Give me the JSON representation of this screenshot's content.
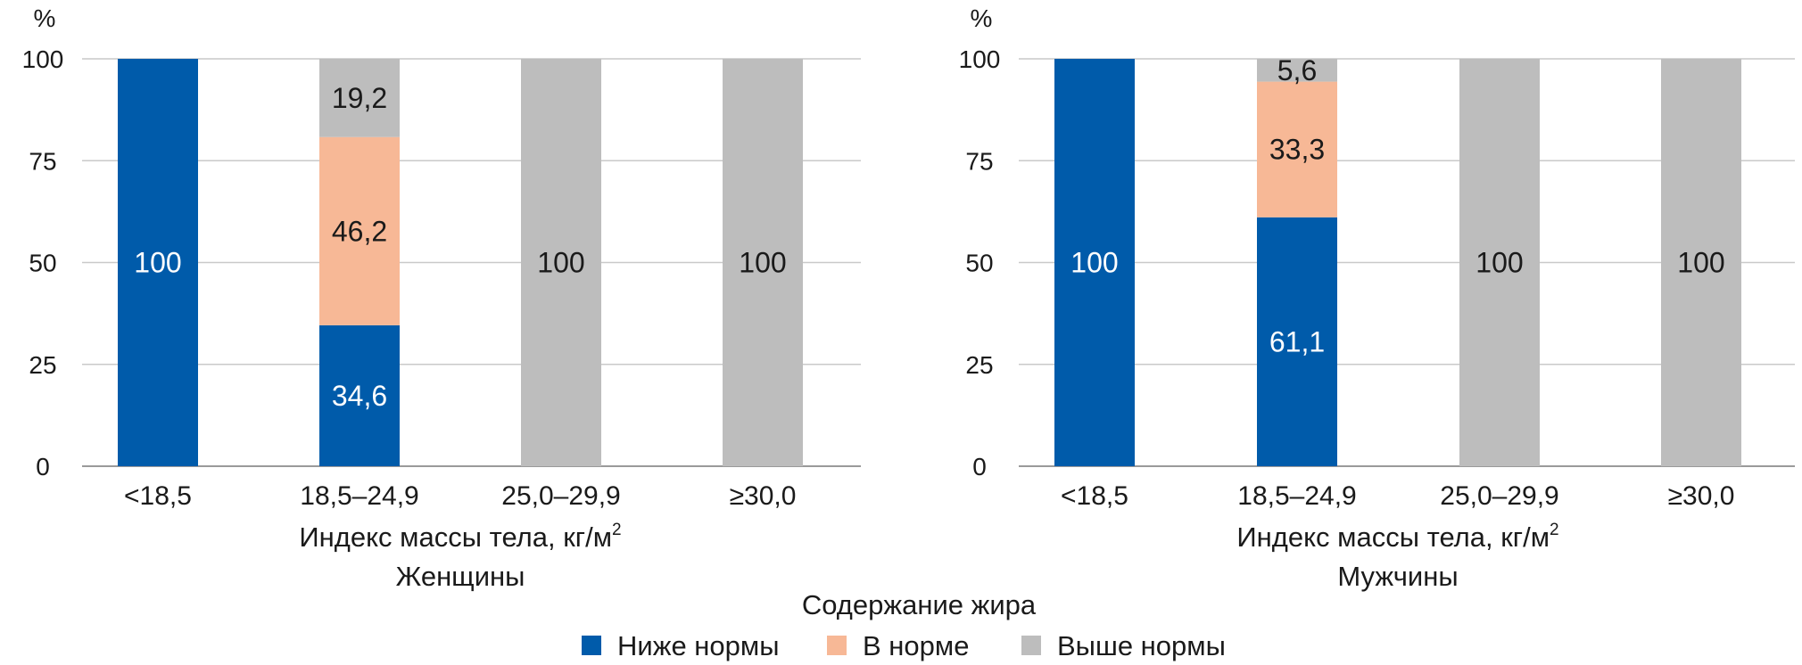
{
  "chart_data": [
    {
      "type": "bar",
      "stacked": true,
      "subtitle": "Женщины",
      "xlabel": "Индекс массы тела, кг/м",
      "xlabel_sup": "2",
      "ylabel": "%",
      "ylim": [
        0,
        100
      ],
      "yticks": [
        "0",
        "25",
        "50",
        "75",
        "100"
      ],
      "grid": true,
      "categories": [
        "<18,5",
        "18,5–24,9",
        "25,0–29,9",
        "≥30,0"
      ],
      "series": [
        {
          "name": "Ниже нормы",
          "color": "#005baa",
          "values": [
            100,
            34.6,
            0,
            0
          ],
          "labels": [
            "100",
            "34,6",
            "",
            ""
          ]
        },
        {
          "name": "В норме",
          "color": "#f7b896",
          "values": [
            0,
            46.2,
            0,
            0
          ],
          "labels": [
            "",
            "46,2",
            "",
            ""
          ]
        },
        {
          "name": "Выше нормы",
          "color": "#bdbdbd",
          "values": [
            0,
            19.2,
            100,
            100
          ],
          "labels": [
            "",
            "19,2",
            "100",
            "100"
          ]
        }
      ]
    },
    {
      "type": "bar",
      "stacked": true,
      "subtitle": "Мужчины",
      "xlabel": "Индекс массы тела, кг/м",
      "xlabel_sup": "2",
      "ylabel": "%",
      "ylim": [
        0,
        100
      ],
      "yticks": [
        "0",
        "25",
        "50",
        "75",
        "100"
      ],
      "grid": true,
      "categories": [
        "<18,5",
        "18,5–24,9",
        "25,0–29,9",
        "≥30,0"
      ],
      "series": [
        {
          "name": "Ниже нормы",
          "color": "#005baa",
          "values": [
            100,
            61.1,
            0,
            0
          ],
          "labels": [
            "100",
            "61,1",
            "",
            ""
          ]
        },
        {
          "name": "В норме",
          "color": "#f7b896",
          "values": [
            0,
            33.3,
            0,
            0
          ],
          "labels": [
            "",
            "33,3",
            "",
            ""
          ]
        },
        {
          "name": "Выше нормы",
          "color": "#bdbdbd",
          "values": [
            0,
            5.6,
            100,
            100
          ],
          "labels": [
            "",
            "5,6",
            "100",
            "100"
          ]
        }
      ]
    }
  ],
  "legend": {
    "title": "Содержание жира",
    "position": "bottom-center",
    "items": [
      {
        "name": "Ниже нормы",
        "color": "#005baa"
      },
      {
        "name": "В норме",
        "color": "#f7b896"
      },
      {
        "name": "Выше нормы",
        "color": "#bdbdbd"
      }
    ]
  }
}
